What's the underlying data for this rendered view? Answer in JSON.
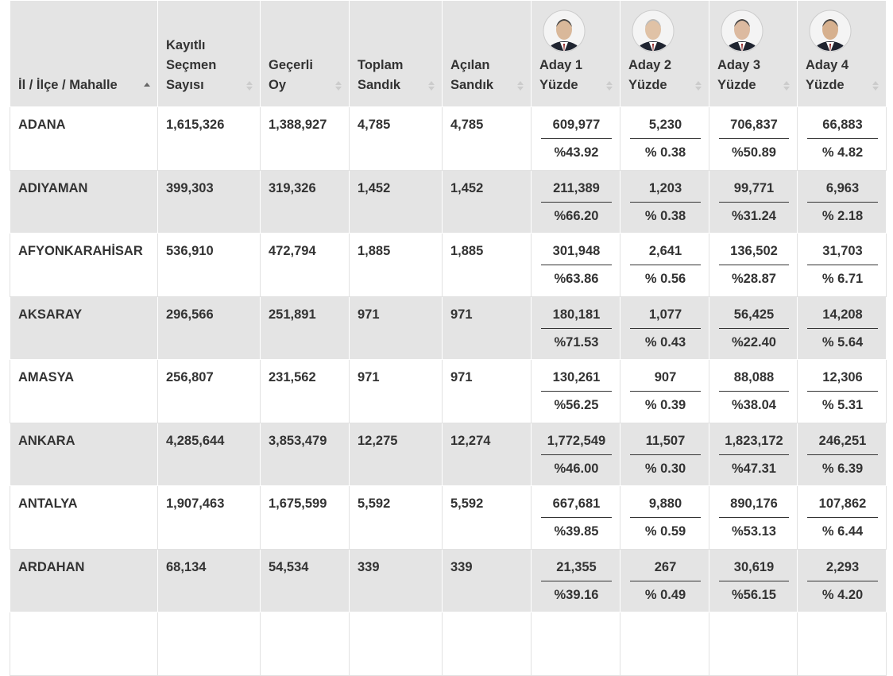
{
  "table": {
    "header": [
      "İl / İlçe / Mahalle",
      "Kayıtlı\nSeçmen\nSayısı",
      "Geçerli\nOy",
      "Toplam\nSandık",
      "Açılan\nSandık",
      "Aday 1\nYüzde",
      "Aday 2\nYüzde",
      "Aday 3\nYüzde",
      "Aday 4\nYüzde"
    ],
    "rows": [
      {
        "name": "ADANA",
        "cells": [
          "1,615,326",
          "1,388,927",
          "4,785",
          "4,785"
        ],
        "candidates": [
          {
            "votes": "609,977",
            "percent": "%43.92"
          },
          {
            "votes": "5,230",
            "percent": "% 0.38"
          },
          {
            "votes": "706,837",
            "percent": "%50.89"
          },
          {
            "votes": "66,883",
            "percent": "% 4.82"
          }
        ]
      },
      {
        "name": "ADIYAMAN",
        "cells": [
          "399,303",
          "319,326",
          "1,452",
          "1,452"
        ],
        "candidates": [
          {
            "votes": "211,389",
            "percent": "%66.20"
          },
          {
            "votes": "1,203",
            "percent": "% 0.38"
          },
          {
            "votes": "99,771",
            "percent": "%31.24"
          },
          {
            "votes": "6,963",
            "percent": "% 2.18"
          }
        ]
      },
      {
        "name": "AFYONKARAHİSAR",
        "cells": [
          "536,910",
          "472,794",
          "1,885",
          "1,885"
        ],
        "candidates": [
          {
            "votes": "301,948",
            "percent": "%63.86"
          },
          {
            "votes": "2,641",
            "percent": "% 0.56"
          },
          {
            "votes": "136,502",
            "percent": "%28.87"
          },
          {
            "votes": "31,703",
            "percent": "% 6.71"
          }
        ]
      },
      {
        "name": "AKSARAY",
        "cells": [
          "296,566",
          "251,891",
          "971",
          "971"
        ],
        "candidates": [
          {
            "votes": "180,181",
            "percent": "%71.53"
          },
          {
            "votes": "1,077",
            "percent": "% 0.43"
          },
          {
            "votes": "56,425",
            "percent": "%22.40"
          },
          {
            "votes": "14,208",
            "percent": "% 5.64"
          }
        ]
      },
      {
        "name": "AMASYA",
        "cells": [
          "256,807",
          "231,562",
          "971",
          "971"
        ],
        "candidates": [
          {
            "votes": "130,261",
            "percent": "%56.25"
          },
          {
            "votes": "907",
            "percent": "% 0.39"
          },
          {
            "votes": "88,088",
            "percent": "%38.04"
          },
          {
            "votes": "12,306",
            "percent": "% 5.31"
          }
        ]
      },
      {
        "name": "ANKARA",
        "cells": [
          "4,285,644",
          "3,853,479",
          "12,275",
          "12,274"
        ],
        "candidates": [
          {
            "votes": "1,772,549",
            "percent": "%46.00"
          },
          {
            "votes": "11,507",
            "percent": "% 0.30"
          },
          {
            "votes": "1,823,172",
            "percent": "%47.31"
          },
          {
            "votes": "246,251",
            "percent": "% 6.39"
          }
        ]
      },
      {
        "name": "ANTALYA",
        "cells": [
          "1,907,463",
          "1,675,599",
          "5,592",
          "5,592"
        ],
        "candidates": [
          {
            "votes": "667,681",
            "percent": "%39.85"
          },
          {
            "votes": "9,880",
            "percent": "% 0.59"
          },
          {
            "votes": "890,176",
            "percent": "%53.13"
          },
          {
            "votes": "107,862",
            "percent": "% 6.44"
          }
        ]
      },
      {
        "name": "ARDAHAN",
        "cells": [
          "68,134",
          "54,534",
          "339",
          "339"
        ],
        "candidates": [
          {
            "votes": "21,355",
            "percent": "%39.16"
          },
          {
            "votes": "267",
            "percent": "% 0.49"
          },
          {
            "votes": "30,619",
            "percent": "%56.15"
          },
          {
            "votes": "2,293",
            "percent": "% 4.20"
          }
        ]
      }
    ]
  }
}
